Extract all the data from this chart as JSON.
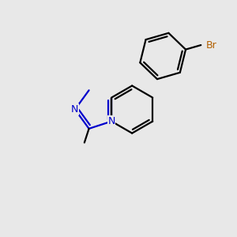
{
  "background_color": "#e8e8e8",
  "bond_color": "#000000",
  "n_color": "#0000cc",
  "br_color": "#b36000",
  "methyl_color": "#000000",
  "line_width": 1.6,
  "font_size_N": 9,
  "font_size_Br": 9,
  "font_size_CH3": 8,
  "xlim": [
    0,
    10
  ],
  "ylim": [
    0,
    10
  ]
}
